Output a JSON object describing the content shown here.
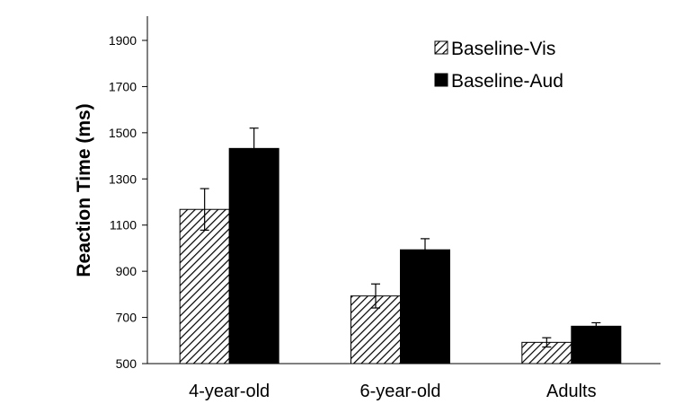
{
  "chart_data": {
    "type": "bar",
    "title": "",
    "xlabel": "",
    "ylabel": "Reaction Time (ms)",
    "categories": [
      "4-year-old",
      "6-year-old",
      "Adults"
    ],
    "ylim": [
      500,
      1900
    ],
    "yticks": [
      500,
      700,
      900,
      1100,
      1300,
      1500,
      1700,
      1900
    ],
    "legend_position": "top-right",
    "series": [
      {
        "name": "Baseline-Vis",
        "pattern": "hatched",
        "values": [
          1168,
          793,
          592
        ],
        "errors": [
          90,
          52,
          20
        ]
      },
      {
        "name": "Baseline-Aud",
        "pattern": "solid",
        "color": "#000000",
        "values": [
          1432,
          993,
          662
        ],
        "errors": [
          88,
          48,
          15
        ]
      }
    ]
  }
}
